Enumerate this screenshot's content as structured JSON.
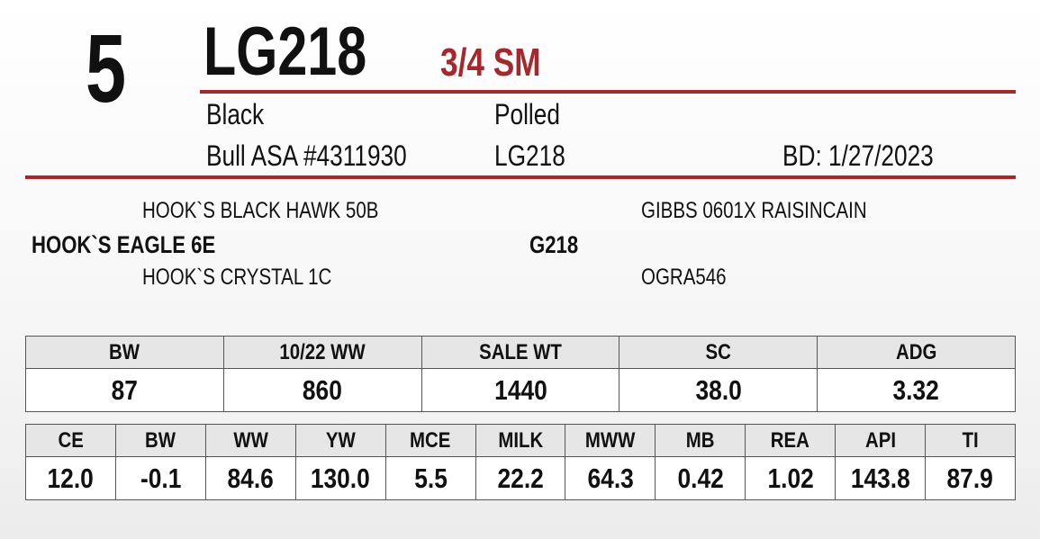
{
  "header": {
    "lot": "5",
    "id": "LG218",
    "breed": "3/4 SM",
    "color": "Black",
    "horn": "Polled",
    "registration": "Bull ASA #4311930",
    "tattoo": "LG218",
    "birth_date": "BD: 1/27/2023"
  },
  "pedigree": {
    "sire": "HOOK`S EAGLE 6E",
    "sire_sire": "HOOK`S BLACK HAWK 50B",
    "sire_dam": "HOOK`S CRYSTAL 1C",
    "dam": "G218",
    "dam_sire": "GIBBS 0601X RAISINCAIN",
    "dam_dam": "OGRA546"
  },
  "performance": {
    "headers": [
      "BW",
      "10/22 WW",
      "SALE WT",
      "SC",
      "ADG"
    ],
    "values": [
      "87",
      "860",
      "1440",
      "38.0",
      "3.32"
    ]
  },
  "epds": {
    "headers": [
      "CE",
      "BW",
      "WW",
      "YW",
      "MCE",
      "MILK",
      "MWW",
      "MB",
      "REA",
      "API",
      "TI"
    ],
    "values": [
      "12.0",
      "-0.1",
      "84.6",
      "130.0",
      "5.5",
      "22.2",
      "64.3",
      "0.42",
      "1.02",
      "143.8",
      "87.9"
    ]
  }
}
